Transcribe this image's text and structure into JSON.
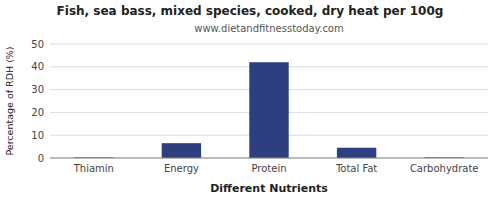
{
  "chart_data": {
    "type": "bar",
    "title": "Fish, sea bass, mixed species, cooked, dry heat per 100g",
    "subtitle": "www.dietandfitnesstoday.com",
    "xlabel": "Different Nutrients",
    "ylabel": "Percentage of RDH (%)",
    "categories": [
      "Thiamin",
      "Energy",
      "Protein",
      "Total Fat",
      "Carbohydrate"
    ],
    "values": [
      0.3,
      6.5,
      42.0,
      4.5,
      0.3
    ],
    "color": "#2E3F7F",
    "ylim": [
      0,
      50
    ],
    "yticks": [
      0,
      10,
      20,
      30,
      40,
      50
    ],
    "grid": true
  }
}
